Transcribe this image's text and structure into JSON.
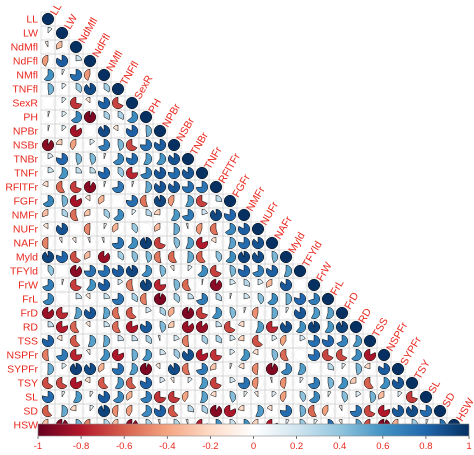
{
  "chart_data": {
    "type": "heatmap",
    "style": "lower-triangle pie correlogram",
    "variables": [
      "LL",
      "LW",
      "NdMfl",
      "NdFfl",
      "NMfl",
      "TNFfl",
      "SexR",
      "PH",
      "NPBr",
      "NSBr",
      "TNBr",
      "TNFr",
      "RFlTFr",
      "FGFr",
      "NMFr",
      "NUFr",
      "NAFr",
      "Myld",
      "TFYld",
      "FrW",
      "FrL",
      "FrD",
      "RD",
      "TSS",
      "NSPFr",
      "SYPFr",
      "TSY",
      "SL",
      "SD",
      "HSW"
    ],
    "colorbar": {
      "range": [
        -1,
        1
      ],
      "ticks": [
        "-1",
        "-0.8",
        "-0.6",
        "-0.4",
        "-0.2",
        "0",
        "0.2",
        "0.4",
        "0.6",
        "0.8",
        "1"
      ],
      "colors": {
        "neg": "#67001f",
        "mid": "#ffffff",
        "pos": "#053061"
      }
    },
    "label_color": "#e8281e",
    "grid": true
  }
}
